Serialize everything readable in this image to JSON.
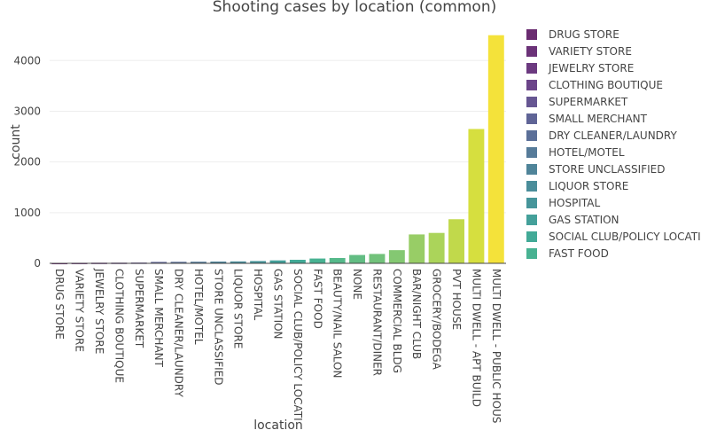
{
  "chart_data": {
    "type": "bar",
    "title": "Shooting cases by location (common)",
    "xlabel": "location",
    "ylabel": "count",
    "ylim": [
      0,
      4600
    ],
    "yticks": [
      0,
      1000,
      2000,
      3000,
      4000
    ],
    "grid": true,
    "legend_position": "right",
    "categories": [
      "DRUG STORE",
      "VARIETY STORE",
      "JEWELRY STORE",
      "CLOTHING BOUTIQUE",
      "SUPERMARKET",
      "SMALL MERCHANT",
      "DRY CLEANER/LAUNDRY",
      "HOTEL/MOTEL",
      "STORE UNCLASSIFIED",
      "LIQUOR STORE",
      "HOSPITAL",
      "GAS STATION",
      "SOCIAL CLUB/POLICY LOCATI",
      "FAST FOOD",
      "BEAUTY/NAIL SALON",
      "NONE",
      "RESTAURANT/DINER",
      "COMMERCIAL BLDG",
      "BAR/NIGHT CLUB",
      "GROCERY/BODEGA",
      "PVT HOUSE",
      "MULTI DWELL - APT BUILD",
      "MULTI DWELL - PUBLIC HOUS"
    ],
    "values": [
      8,
      10,
      12,
      13,
      15,
      28,
      30,
      32,
      35,
      38,
      45,
      58,
      70,
      95,
      105,
      165,
      185,
      260,
      570,
      600,
      870,
      2650,
      4500
    ],
    "colors": [
      "#6a2c70",
      "#6b3278",
      "#6c3a80",
      "#6b4489",
      "#665692",
      "#5f6496",
      "#5b6f98",
      "#567b99",
      "#4f8499",
      "#4a8d9a",
      "#46959a",
      "#44a09a",
      "#42aa97",
      "#48b292",
      "#55b98a",
      "#62bd83",
      "#72c27b",
      "#84c872",
      "#98cd66",
      "#abd45a",
      "#c1d94b",
      "#d6df3f",
      "#f4e23a"
    ],
    "legend": [
      "DRUG STORE",
      "VARIETY STORE",
      "JEWELRY STORE",
      "CLOTHING BOUTIQUE",
      "SUPERMARKET",
      "SMALL MERCHANT",
      "DRY CLEANER/LAUNDRY",
      "HOTEL/MOTEL",
      "STORE UNCLASSIFIED",
      "LIQUOR STORE",
      "HOSPITAL",
      "GAS STATION",
      "SOCIAL CLUB/POLICY LOCATI",
      "FAST FOOD"
    ]
  }
}
